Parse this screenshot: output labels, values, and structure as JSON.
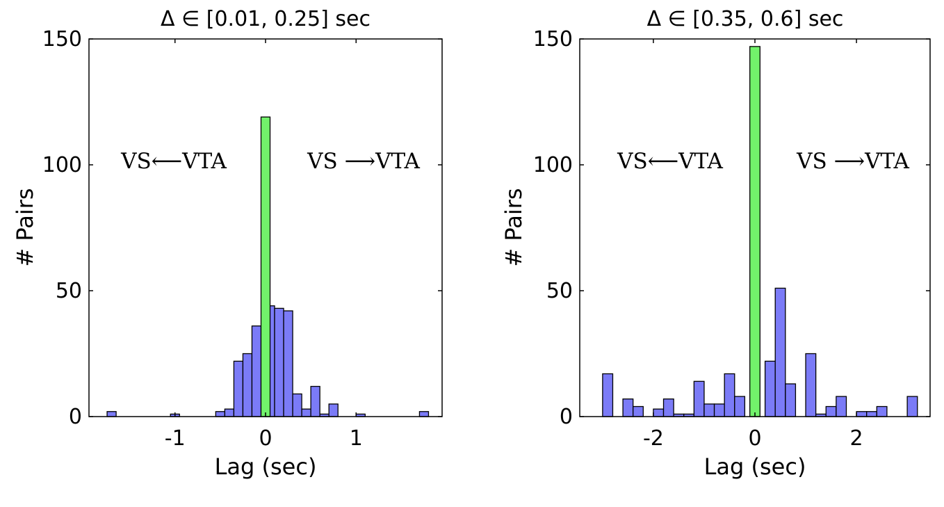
{
  "chart_data": [
    {
      "type": "bar",
      "title": "Δ ∈ [0.01, 0.25] sec",
      "xlabel": "Lag (sec)",
      "ylabel": "# Pairs",
      "xlim": [
        -1.95,
        1.95
      ],
      "ylim": [
        0,
        150
      ],
      "xticks": [
        "-1",
        "0",
        "1"
      ],
      "yticks": [
        "0",
        "50",
        "100",
        "150"
      ],
      "grid": false,
      "annotations": {
        "left": "VS⟵VTA",
        "right": "VS ⟶VTA"
      },
      "colors": {
        "bins": "#7b7bf7",
        "zero_bin": "#72f26b",
        "edge": "#000000"
      },
      "series": [
        {
          "bin_width": 0.1,
          "x": [
            -1.7,
            -1.0,
            -0.5,
            -0.4,
            -0.3,
            -0.2,
            -0.1,
            0.05,
            0.15,
            0.25,
            0.35,
            0.45,
            0.55,
            0.65,
            0.75,
            1.05,
            1.75
          ],
          "values": [
            2,
            1,
            2,
            3,
            22,
            25,
            36,
            44,
            43,
            42,
            9,
            3,
            12,
            1,
            5,
            1,
            2
          ]
        },
        {
          "bin_width": 0.1,
          "x": [
            0.0
          ],
          "values": [
            119
          ]
        }
      ]
    },
    {
      "type": "bar",
      "title": "Δ ∈ [0.35, 0.6] sec",
      "xlabel": "Lag (sec)",
      "ylabel": "# Pairs",
      "xlim": [
        -3.45,
        3.45
      ],
      "ylim": [
        0,
        150
      ],
      "xticks": [
        "-2",
        "0",
        "2"
      ],
      "yticks": [
        "0",
        "50",
        "100",
        "150"
      ],
      "grid": false,
      "annotations": {
        "left": "VS⟵VTA",
        "right": "VS ⟶VTA"
      },
      "colors": {
        "bins": "#7b7bf7",
        "zero_bin": "#72f26b",
        "edge": "#000000"
      },
      "series": [
        {
          "bin_width": 0.2,
          "x": [
            -2.9,
            -2.5,
            -2.3,
            -1.9,
            -1.7,
            -1.5,
            -1.3,
            -1.1,
            -0.9,
            -0.7,
            -0.5,
            -0.3,
            0.3,
            0.5,
            0.7,
            1.1,
            1.3,
            1.5,
            1.7,
            2.1,
            2.3,
            2.5,
            3.1
          ],
          "values": [
            17,
            7,
            4,
            3,
            7,
            1,
            1,
            14,
            5,
            5,
            17,
            8,
            22,
            51,
            13,
            25,
            1,
            4,
            8,
            2,
            2,
            4,
            8
          ]
        },
        {
          "bin_width": 0.2,
          "x": [
            0.0
          ],
          "values": [
            147
          ]
        }
      ]
    }
  ]
}
